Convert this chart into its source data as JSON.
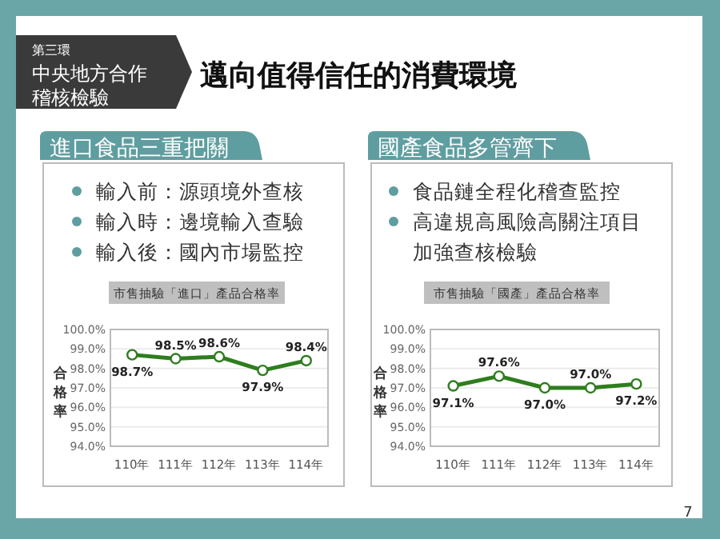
{
  "chart_data": [
    {
      "type": "other",
      "title": "邁向值得信任的消費環境",
      "annotations": [
        "第三環",
        "中央地方合作",
        "稽核檢驗",
        "進口食品三重把關",
        "輸入前：源頭境外查核",
        "輸入時：邊境輸入查驗",
        "輸入後：國內市場監控",
        "國產食品多管齊下",
        "食品鏈全程化稽查監控",
        "高違規高風險高關注項目",
        "加強查核檢驗",
        "7"
      ]
    },
    {
      "type": "line",
      "title": "市售抽驗「進口」產品合格率",
      "ylabel": "合格率",
      "categories": [
        "110年",
        "111年",
        "112年",
        "113年",
        "114年"
      ],
      "series": [
        {
          "color": "#2e7d1e",
          "values": [
            98.7,
            98.5,
            98.6,
            97.9,
            98.4
          ],
          "value_labels": [
            "98.7%",
            "98.5%",
            "98.6%",
            "97.9%",
            "98.4%"
          ]
        }
      ],
      "ylim": [
        94,
        100
      ],
      "yticks": [
        {
          "value": 94,
          "label": "94.0%"
        },
        {
          "value": 95,
          "label": "95.0%"
        },
        {
          "value": 96,
          "label": "96.0%"
        },
        {
          "value": 97,
          "label": "97.0%"
        },
        {
          "value": 98,
          "label": "98.0%"
        },
        {
          "value": 99,
          "label": "99.0%"
        },
        {
          "value": 100,
          "label": "100.0%"
        }
      ],
      "grid": "y",
      "marker": "circle",
      "line_style": "solid"
    },
    {
      "type": "line",
      "title": "市售抽驗「國產」產品合格率",
      "ylabel": "合格率",
      "categories": [
        "110年",
        "111年",
        "112年",
        "113年",
        "114年"
      ],
      "series": [
        {
          "color": "#2e7d1e",
          "values": [
            97.1,
            97.6,
            97.0,
            97.0,
            97.2
          ],
          "value_labels": [
            "97.1%",
            "97.6%",
            "97.0%",
            "97.0%",
            "97.2%"
          ]
        }
      ],
      "ylim": [
        94,
        100
      ],
      "yticks": [
        {
          "value": 94,
          "label": "94.0%"
        },
        {
          "value": 95,
          "label": "95.0%"
        },
        {
          "value": 96,
          "label": "96.0%"
        },
        {
          "value": 97,
          "label": "97.0%"
        },
        {
          "value": 98,
          "label": "98.0%"
        },
        {
          "value": 99,
          "label": "99.0%"
        },
        {
          "value": 100,
          "label": "100.0%"
        }
      ],
      "grid": "y",
      "marker": "circle",
      "line_style": "solid"
    }
  ]
}
